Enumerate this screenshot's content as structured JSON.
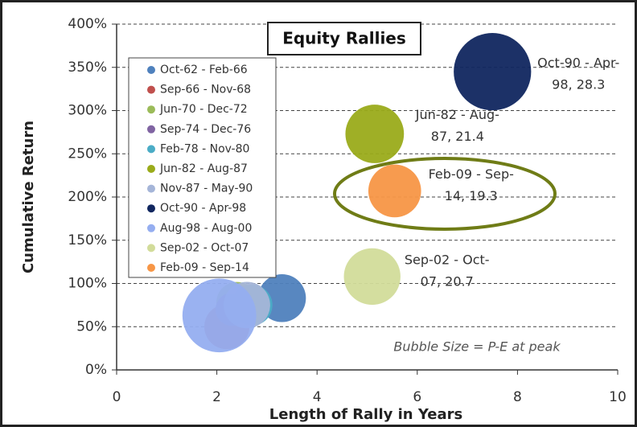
{
  "chart_data": {
    "type": "bubble",
    "title": "Equity Rallies",
    "xlabel": "Length of Rally in Years",
    "ylabel": "Cumulative Return",
    "annotation": "Bubble Size = P-E at peak",
    "xlim": [
      0,
      10
    ],
    "xticks": [
      0,
      2,
      4,
      6,
      8,
      10
    ],
    "ylim": [
      0,
      400
    ],
    "yticks": [
      {
        "value": 0,
        "label": "0%"
      },
      {
        "value": 50,
        "label": "50%"
      },
      {
        "value": 100,
        "label": "100%"
      },
      {
        "value": 150,
        "label": "150%"
      },
      {
        "value": 200,
        "label": "200%"
      },
      {
        "value": 250,
        "label": "250%"
      },
      {
        "value": 300,
        "label": "300%"
      },
      {
        "value": 350,
        "label": "350%"
      },
      {
        "value": 400,
        "label": "400%"
      }
    ],
    "grid": true,
    "legend": "upper left",
    "series": [
      {
        "name": "Oct-62 - Feb-66",
        "color": "#4f81bd",
        "x": [
          3.3
        ],
        "values": [
          83
        ],
        "sizes": [
          17.5
        ]
      },
      {
        "name": "Sep-66 - Nov-68",
        "color": "#c0504d",
        "x": [
          2.2
        ],
        "values": [
          50
        ],
        "sizes": [
          16.5
        ]
      },
      {
        "name": "Jun-70 - Dec-72",
        "color": "#9bbb59",
        "x": [
          2.4
        ],
        "values": [
          78
        ],
        "sizes": [
          15
        ]
      },
      {
        "name": "Sep-74 - Dec-76",
        "color": "#8064a2",
        "x": [
          2.3
        ],
        "values": [
          70
        ],
        "sizes": [
          12
        ]
      },
      {
        "name": "Feb-78 - Nov-80",
        "color": "#4bacc6",
        "x": [
          2.7
        ],
        "values": [
          75
        ],
        "sizes": [
          15
        ]
      },
      {
        "name": "Jun-82 - Aug-87",
        "color": "#9aab1a",
        "x": [
          5.15
        ],
        "values": [
          273
        ],
        "sizes": [
          21.4
        ],
        "data_label": [
          "Jun-82 - Aug-",
          "87, 21.4"
        ]
      },
      {
        "name": "Nov-87 - May-90",
        "color": "#a5b5d8",
        "x": [
          2.6
        ],
        "values": [
          75
        ],
        "sizes": [
          17
        ]
      },
      {
        "name": "Oct-90 - Apr-98",
        "color": "#10265f",
        "x": [
          7.5
        ],
        "values": [
          345
        ],
        "sizes": [
          28.3
        ],
        "data_label": [
          "Oct-90 - Apr-",
          "98, 28.3"
        ]
      },
      {
        "name": "Aug-98 - Aug-00",
        "color": "#95aef0",
        "x": [
          2.05
        ],
        "values": [
          63
        ],
        "sizes": [
          27
        ]
      },
      {
        "name": "Sep-02 - Oct-07",
        "color": "#d2dc9a",
        "x": [
          5.1
        ],
        "values": [
          108
        ],
        "sizes": [
          20.7
        ],
        "data_label": [
          "Sep-02 - Oct-",
          "07, 20.7"
        ]
      },
      {
        "name": "Feb-09 - Sep-14",
        "color": "#f79646",
        "x": [
          5.55
        ],
        "values": [
          207
        ],
        "sizes": [
          19.3
        ],
        "data_label": [
          "Feb-09 - Sep-",
          "14, 19.3"
        ]
      }
    ]
  }
}
